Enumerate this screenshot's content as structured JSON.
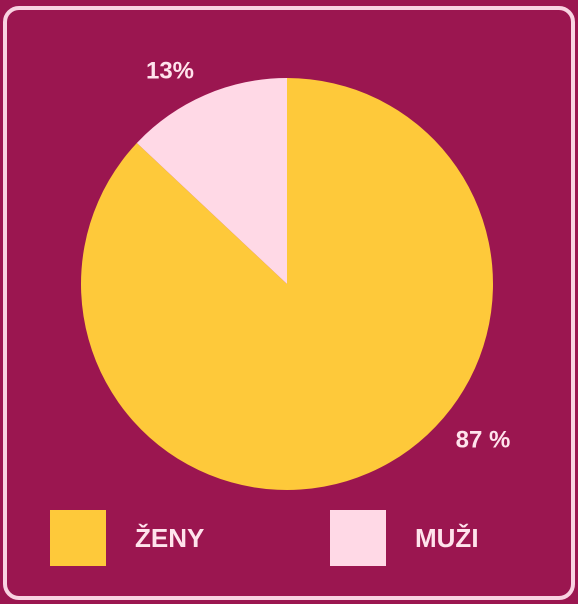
{
  "chart_data": {
    "type": "pie",
    "categories": [
      "ŽENY",
      "MUŽI"
    ],
    "values": [
      87,
      13
    ],
    "value_labels": [
      "87 %",
      "13%"
    ],
    "colors": [
      "#fec93a",
      "#ffd9e6"
    ],
    "legend": "bottom"
  }
}
